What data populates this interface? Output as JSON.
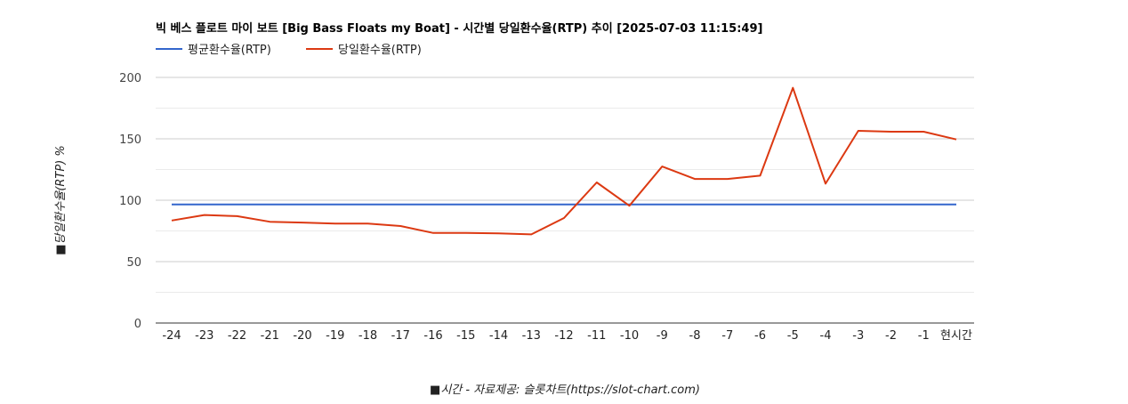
{
  "chart_data": {
    "type": "line",
    "title": "빅 베스 플로트 마이 보트 [Big Bass Floats my Boat] - 시간별 당일환수율(RTP) 추이 [2025-07-03 11:15:49]",
    "xlabel": "■시간 - 자료제공: 슬롯차트(https://slot-chart.com)",
    "ylabel": "■당일환수율(RTP) %",
    "ylim": [
      0,
      200
    ],
    "yticks": [
      "0",
      "50",
      "100",
      "150",
      "200"
    ],
    "grid": true,
    "legend_position": "top-left",
    "categories": [
      "-24",
      "-23",
      "-22",
      "-21",
      "-20",
      "-19",
      "-18",
      "-17",
      "-16",
      "-15",
      "-14",
      "-13",
      "-12",
      "-11",
      "-10",
      "-9",
      "-8",
      "-7",
      "-6",
      "-5",
      "-4",
      "-3",
      "-2",
      "-1",
      "현시간"
    ],
    "series": [
      {
        "name": "평균환수율(RTP)",
        "color": "#3366cc",
        "values": [
          96.5,
          96.5,
          96.5,
          96.5,
          96.5,
          96.5,
          96.5,
          96.5,
          96.5,
          96.5,
          96.5,
          96.5,
          96.5,
          96.5,
          96.5,
          96.5,
          96.5,
          96.5,
          96.5,
          96.5,
          96.5,
          96.5,
          96.5,
          96.5,
          96.5
        ]
      },
      {
        "name": "당일환수율(RTP)",
        "color": "#dc3912",
        "values": [
          83.5,
          88,
          87,
          82.5,
          81.8,
          81,
          81,
          79,
          73.3,
          73.3,
          73,
          72.2,
          85.5,
          114.5,
          95.5,
          127.5,
          117.3,
          117.3,
          120,
          191.5,
          113.5,
          156.5,
          155.8,
          155.8,
          149.5
        ]
      }
    ]
  }
}
